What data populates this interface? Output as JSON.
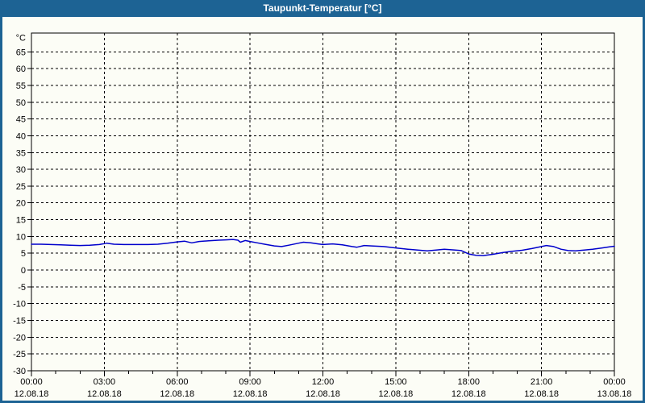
{
  "window": {
    "title": "Taupunkt-Temperatur [°C]"
  },
  "colors": {
    "titlebar_bg": "#1d6394",
    "window_border": "#1d6394",
    "window_bg": "#fcfdf6",
    "axis": "#000000",
    "grid": "#000000",
    "tick_text": "#000000",
    "line": "#0000cc"
  },
  "chart_data": {
    "type": "line",
    "title": "Taupunkt-Temperatur [°C]",
    "y_unit_label": "°C",
    "ylim": [
      -30,
      70.6
    ],
    "y_tick_step": 5,
    "y_ticks": [
      65,
      60,
      55,
      50,
      45,
      40,
      35,
      30,
      25,
      20,
      15,
      10,
      5,
      0,
      -5,
      -10,
      -15,
      -20,
      -25,
      -30
    ],
    "x_span_hours": 24,
    "x_minor_tick_every_hours": 1,
    "x_grid_every_hours": 3,
    "x_major_ticks": [
      {
        "hour": 0,
        "time": "00:00",
        "date": "12.08.18"
      },
      {
        "hour": 3,
        "time": "03:00",
        "date": "12.08.18"
      },
      {
        "hour": 6,
        "time": "06:00",
        "date": "12.08.18"
      },
      {
        "hour": 9,
        "time": "09:00",
        "date": "12.08.18"
      },
      {
        "hour": 12,
        "time": "12:00",
        "date": "12.08.18"
      },
      {
        "hour": 15,
        "time": "15:00",
        "date": "12.08.18"
      },
      {
        "hour": 18,
        "time": "18:00",
        "date": "12.08.18"
      },
      {
        "hour": 21,
        "time": "21:00",
        "date": "12.08.18"
      },
      {
        "hour": 24,
        "time": "00:00",
        "date": "13.08.18"
      }
    ],
    "grid": {
      "horizontal_dashed": true,
      "vertical_dashed": true,
      "legend": "none"
    },
    "series": [
      {
        "name": "Taupunkt-Temperatur",
        "color": "#0000cc",
        "points": [
          [
            0.0,
            7.7
          ],
          [
            0.4,
            7.7
          ],
          [
            0.8,
            7.6
          ],
          [
            1.2,
            7.5
          ],
          [
            1.6,
            7.4
          ],
          [
            2.0,
            7.3
          ],
          [
            2.4,
            7.4
          ],
          [
            2.8,
            7.6
          ],
          [
            3.1,
            8.0
          ],
          [
            3.4,
            7.7
          ],
          [
            3.8,
            7.6
          ],
          [
            4.3,
            7.6
          ],
          [
            4.8,
            7.6
          ],
          [
            5.2,
            7.7
          ],
          [
            5.6,
            8.0
          ],
          [
            6.0,
            8.4
          ],
          [
            6.3,
            8.6
          ],
          [
            6.6,
            8.1
          ],
          [
            6.9,
            8.5
          ],
          [
            7.3,
            8.7
          ],
          [
            7.7,
            8.9
          ],
          [
            8.0,
            9.0
          ],
          [
            8.3,
            9.1
          ],
          [
            8.5,
            8.9
          ],
          [
            8.6,
            8.3
          ],
          [
            8.8,
            8.8
          ],
          [
            9.0,
            8.5
          ],
          [
            9.3,
            8.1
          ],
          [
            9.6,
            7.7
          ],
          [
            10.0,
            7.2
          ],
          [
            10.3,
            7.0
          ],
          [
            10.6,
            7.4
          ],
          [
            11.0,
            8.0
          ],
          [
            11.2,
            8.3
          ],
          [
            11.5,
            8.1
          ],
          [
            11.8,
            7.8
          ],
          [
            12.0,
            7.6
          ],
          [
            12.4,
            7.8
          ],
          [
            12.8,
            7.5
          ],
          [
            13.2,
            7.0
          ],
          [
            13.4,
            6.8
          ],
          [
            13.7,
            7.3
          ],
          [
            14.0,
            7.2
          ],
          [
            14.5,
            7.0
          ],
          [
            15.0,
            6.6
          ],
          [
            15.5,
            6.2
          ],
          [
            16.0,
            5.9
          ],
          [
            16.3,
            5.7
          ],
          [
            16.7,
            6.0
          ],
          [
            17.0,
            6.2
          ],
          [
            17.4,
            6.0
          ],
          [
            17.7,
            5.8
          ],
          [
            18.0,
            4.8
          ],
          [
            18.3,
            4.4
          ],
          [
            18.6,
            4.3
          ],
          [
            19.0,
            4.7
          ],
          [
            19.4,
            5.2
          ],
          [
            19.8,
            5.6
          ],
          [
            20.2,
            5.9
          ],
          [
            20.6,
            6.4
          ],
          [
            21.0,
            7.0
          ],
          [
            21.2,
            7.3
          ],
          [
            21.5,
            7.0
          ],
          [
            21.8,
            6.2
          ],
          [
            22.1,
            5.8
          ],
          [
            22.4,
            5.7
          ],
          [
            22.8,
            6.0
          ],
          [
            23.1,
            6.2
          ],
          [
            23.5,
            6.6
          ],
          [
            23.8,
            6.9
          ],
          [
            24.0,
            7.1
          ]
        ]
      }
    ]
  }
}
